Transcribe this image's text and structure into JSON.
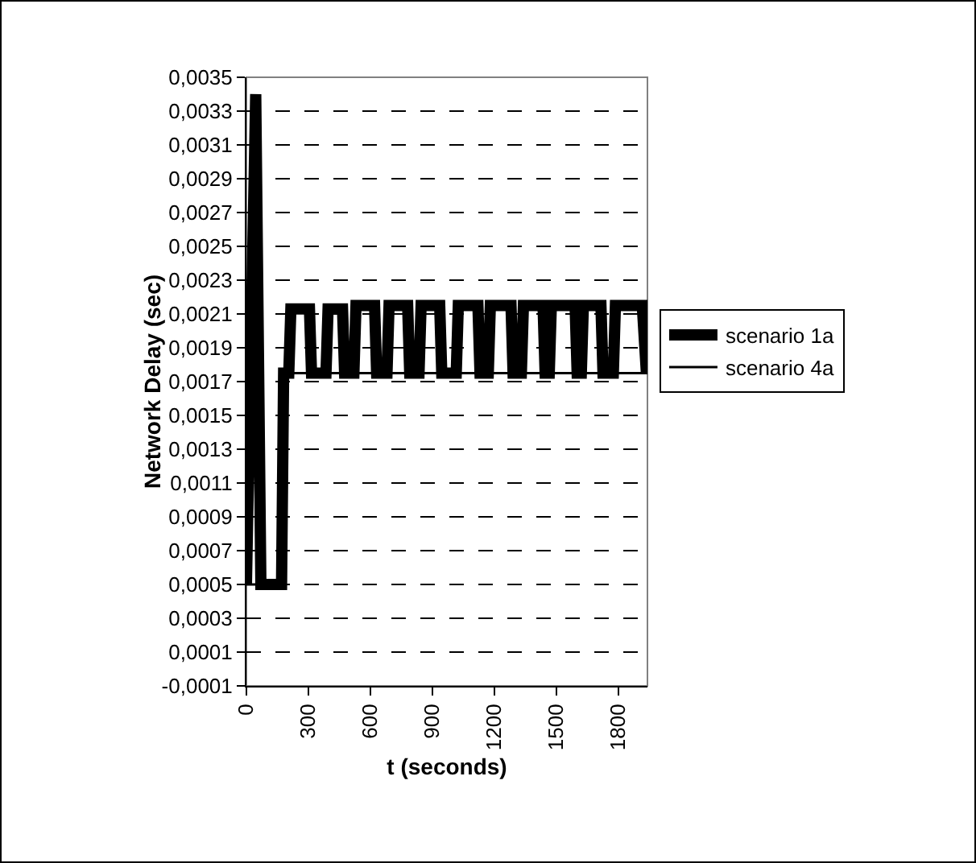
{
  "chart_data": {
    "type": "line",
    "xlabel": "t (seconds)",
    "ylabel": "Network Delay (sec)",
    "xlim": [
      0,
      1940
    ],
    "xticks": [
      0,
      300,
      600,
      900,
      1200,
      1500,
      1800
    ],
    "ylim": [
      -0.0001,
      0.0035
    ],
    "yticks": [
      {
        "value": -0.0001,
        "label": "-0,0001"
      },
      {
        "value": 0.0001,
        "label": "0,0001"
      },
      {
        "value": 0.0003,
        "label": "0,0003"
      },
      {
        "value": 0.0005,
        "label": "0,0005"
      },
      {
        "value": 0.0007,
        "label": "0,0007"
      },
      {
        "value": 0.0009,
        "label": "0,0009"
      },
      {
        "value": 0.0011,
        "label": "0,0011"
      },
      {
        "value": 0.0013,
        "label": "0,0013"
      },
      {
        "value": 0.0015,
        "label": "0,0015"
      },
      {
        "value": 0.0017,
        "label": "0,0017"
      },
      {
        "value": 0.0019,
        "label": "0,0019"
      },
      {
        "value": 0.0021,
        "label": "0,0021"
      },
      {
        "value": 0.0023,
        "label": "0,0023"
      },
      {
        "value": 0.0025,
        "label": "0,0025"
      },
      {
        "value": 0.0027,
        "label": "0,0027"
      },
      {
        "value": 0.0029,
        "label": "0,0029"
      },
      {
        "value": 0.0031,
        "label": "0,0031"
      },
      {
        "value": 0.0033,
        "label": "0,0033"
      },
      {
        "value": 0.0035,
        "label": "0,0035"
      }
    ],
    "grid": "y",
    "legend": "right",
    "marker": "none",
    "series": [
      {
        "name": "scenario 1a",
        "color": "#000000",
        "x": [
          0,
          45,
          70,
          170,
          180,
          205,
          215,
          305,
          315,
          385,
          395,
          465,
          475,
          520,
          530,
          620,
          630,
          680,
          690,
          780,
          790,
          835,
          845,
          935,
          945,
          1015,
          1025,
          1120,
          1130,
          1170,
          1180,
          1280,
          1290,
          1330,
          1340,
          1435,
          1445,
          1465,
          1475,
          1590,
          1600,
          1620,
          1630,
          1715,
          1725,
          1775,
          1785,
          1915,
          1935
        ],
        "values": [
          0.0005,
          0.0034,
          0.0005,
          0.0005,
          0.00175,
          0.00175,
          0.00213,
          0.00213,
          0.00175,
          0.00175,
          0.00213,
          0.00213,
          0.00175,
          0.00175,
          0.00215,
          0.00215,
          0.00175,
          0.00175,
          0.00215,
          0.00215,
          0.00175,
          0.00175,
          0.00215,
          0.00215,
          0.00175,
          0.00175,
          0.00215,
          0.00215,
          0.00175,
          0.00175,
          0.00215,
          0.00215,
          0.00175,
          0.00175,
          0.00215,
          0.00215,
          0.00175,
          0.00175,
          0.00215,
          0.00215,
          0.00175,
          0.00175,
          0.00215,
          0.00215,
          0.00175,
          0.00175,
          0.00215,
          0.00215,
          0.00175
        ]
      },
      {
        "name": "scenario 4a",
        "color": "#000000",
        "x": [
          0,
          170,
          180,
          1940
        ],
        "values": [
          0.0005,
          0.0005,
          0.00175,
          0.00175
        ]
      }
    ]
  }
}
